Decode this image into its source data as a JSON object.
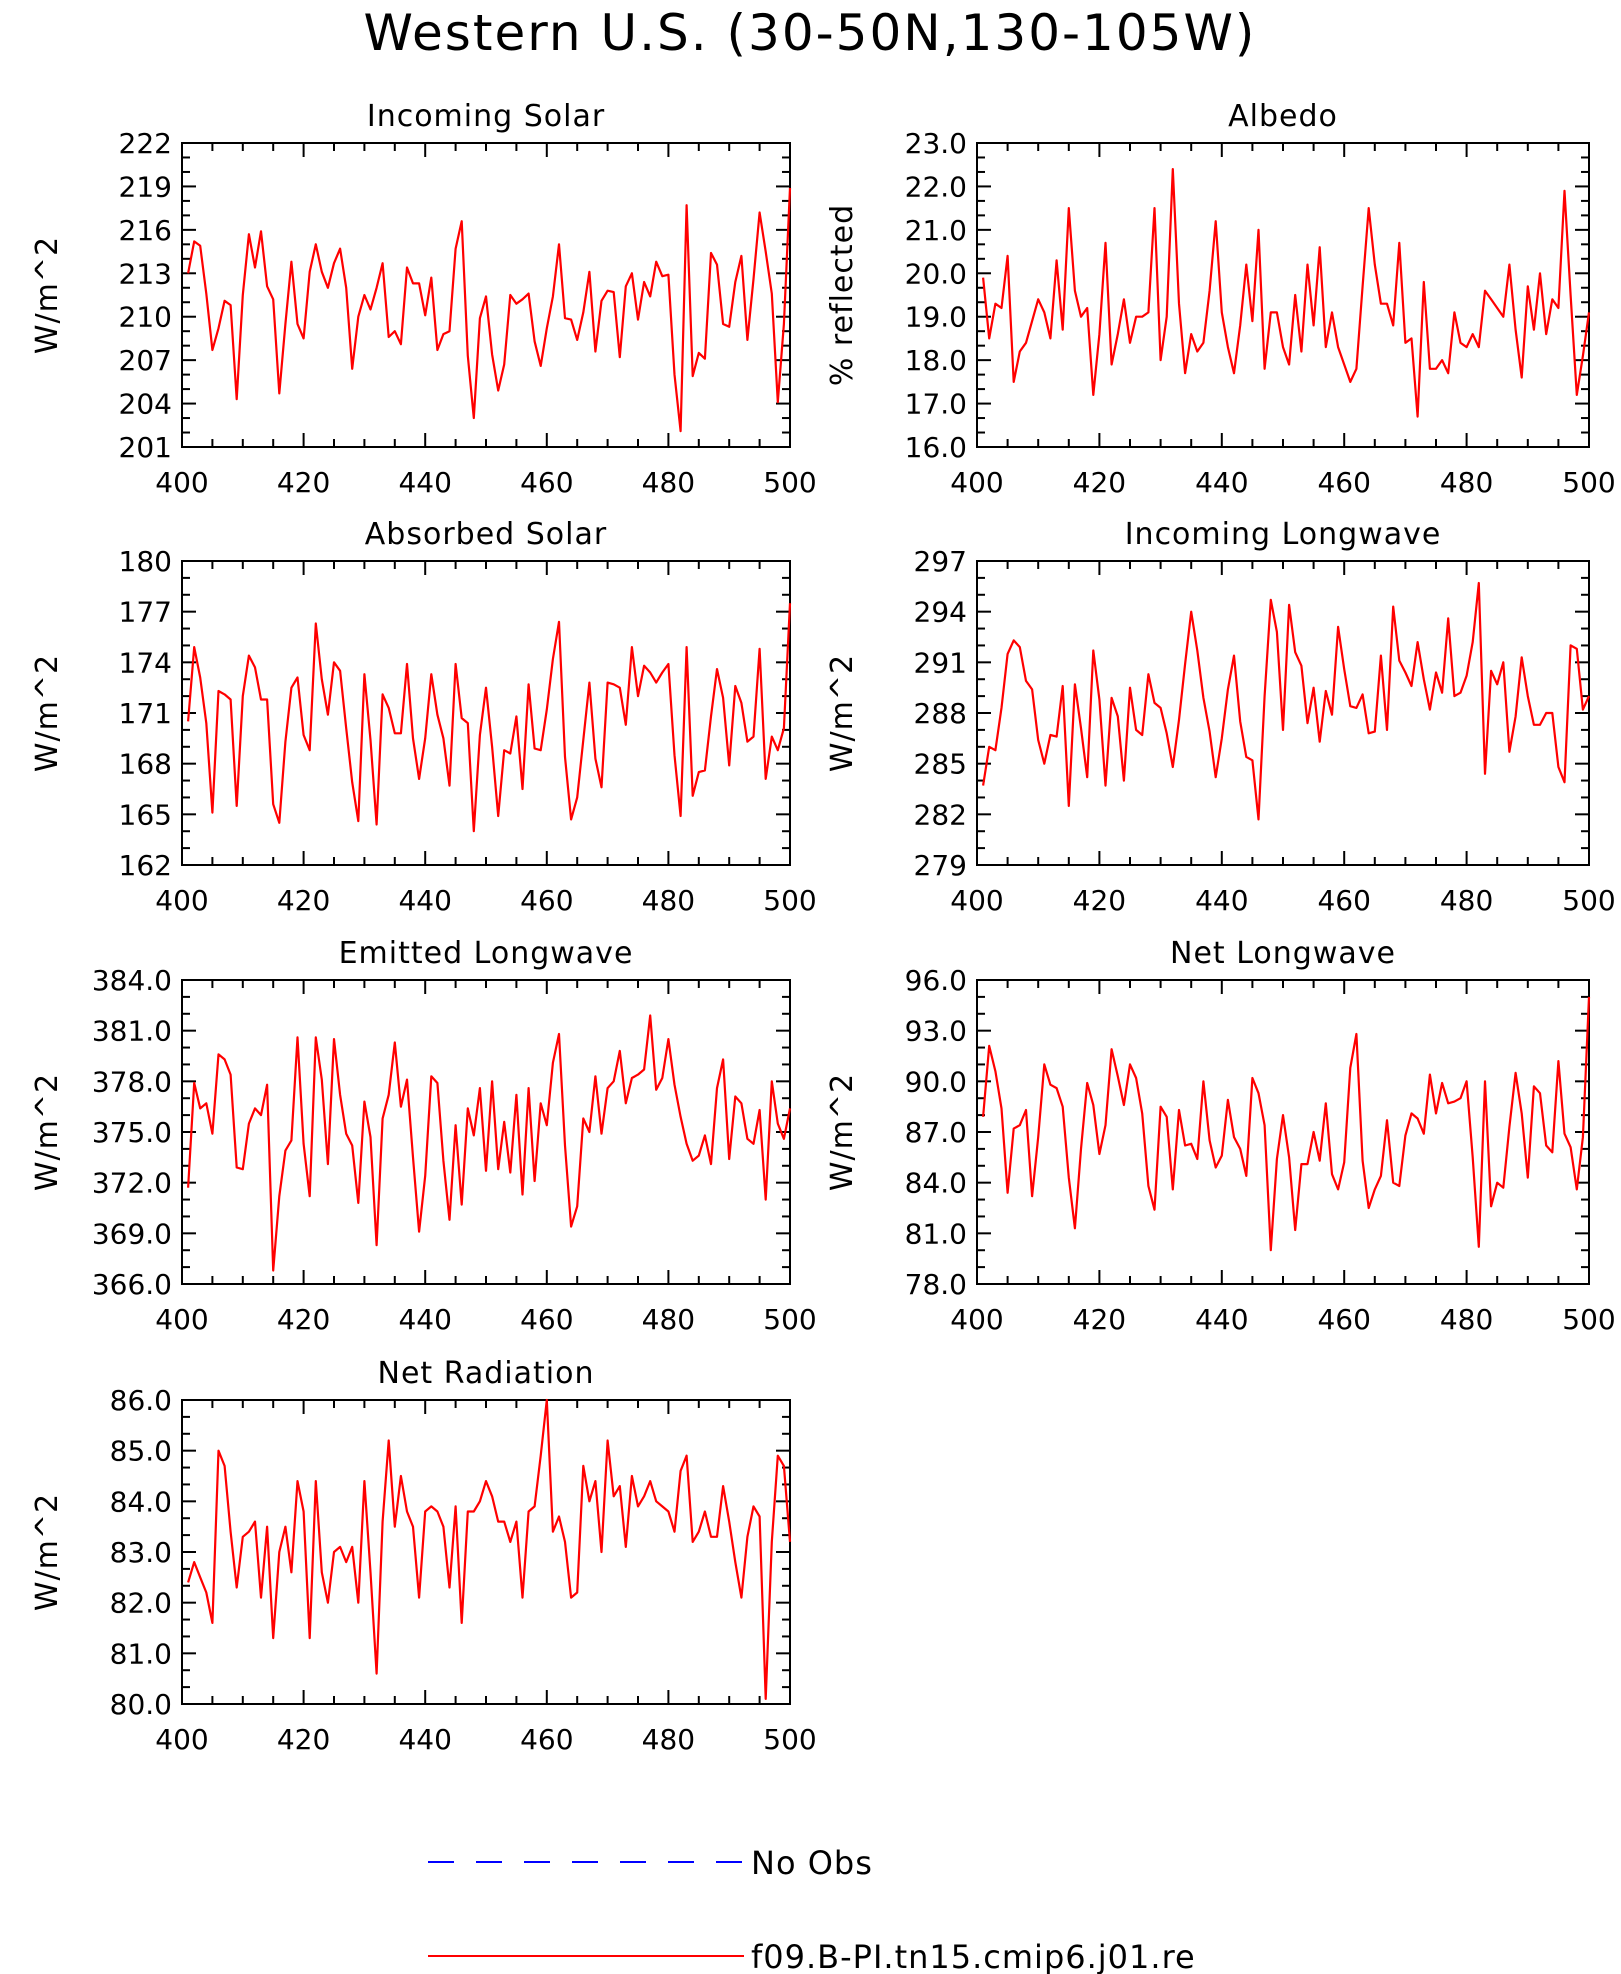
{
  "figure": {
    "title": "Western U.S. (30-50N,130-105W)"
  },
  "colors": {
    "model": "#ff0000",
    "obs": "#0000ff",
    "axes": "#000000"
  },
  "legend": {
    "placement": "bottom-center",
    "entries": [
      {
        "label": "No Obs",
        "style": "dashed",
        "color": "#0000ff"
      },
      {
        "label": "f09.B-PI.tn15.cmip6.j01.re",
        "style": "solid",
        "color": "#ff0000"
      }
    ]
  },
  "chart_data": [
    {
      "type": "line",
      "title": "Incoming Solar",
      "ylabel": "W/m^2",
      "xlabel": "",
      "xlim": [
        400,
        500
      ],
      "ylim": [
        201,
        222
      ],
      "decimals": 0,
      "xticks": [
        400,
        420,
        440,
        460,
        480,
        500
      ],
      "yticks": [
        201,
        204,
        207,
        210,
        213,
        216,
        219,
        222
      ],
      "x_start": 401,
      "x_step": 1,
      "series": [
        {
          "name": "f09.B-PI.tn15.cmip6.j01.re",
          "values": [
            213.0,
            215.2,
            214.9,
            211.6,
            207.7,
            209.2,
            211.1,
            210.8,
            204.3,
            211.5,
            215.7,
            213.4,
            215.9,
            212.1,
            211.2,
            204.7,
            209.5,
            213.8,
            209.5,
            208.5,
            213.1,
            215.0,
            213.1,
            212.0,
            213.7,
            214.7,
            212.0,
            206.4,
            210.0,
            211.5,
            210.5,
            212.0,
            213.7,
            208.6,
            209.0,
            208.1,
            213.4,
            212.3,
            212.3,
            210.1,
            212.7,
            207.7,
            208.8,
            209.0,
            214.7,
            216.6,
            207.3,
            203.0,
            209.9,
            211.4,
            207.4,
            204.9,
            206.7,
            211.5,
            210.9,
            211.2,
            211.6,
            208.3,
            206.6,
            209.2,
            211.4,
            215.0,
            209.9,
            209.8,
            208.4,
            210.3,
            213.1,
            207.6,
            211.1,
            211.8,
            211.7,
            207.2,
            212.1,
            213.0,
            209.8,
            212.4,
            211.4,
            213.8,
            212.8,
            212.9,
            206.0,
            202.1,
            217.7,
            205.9,
            207.5,
            207.1,
            214.4,
            213.6,
            209.5,
            209.3,
            212.4,
            214.2,
            208.4,
            212.6,
            217.2,
            214.5,
            211.6,
            204.1,
            209.5,
            218.9
          ]
        }
      ]
    },
    {
      "type": "line",
      "title": "Albedo",
      "ylabel": "% reflected",
      "xlabel": "",
      "xlim": [
        400,
        500
      ],
      "ylim": [
        16.0,
        23.0
      ],
      "decimals": 1,
      "xticks": [
        400,
        420,
        440,
        460,
        480,
        500
      ],
      "yticks": [
        16.0,
        17.0,
        18.0,
        19.0,
        20.0,
        21.0,
        22.0,
        23.0
      ],
      "x_start": 401,
      "x_step": 1,
      "series": [
        {
          "name": "f09.B-PI.tn15.cmip6.j01.re",
          "values": [
            19.9,
            18.5,
            19.3,
            19.2,
            20.4,
            17.5,
            18.2,
            18.4,
            18.9,
            19.4,
            19.1,
            18.5,
            20.3,
            18.7,
            21.5,
            19.6,
            19.0,
            19.2,
            17.2,
            18.6,
            20.7,
            17.9,
            18.6,
            19.4,
            18.4,
            19.0,
            19.0,
            19.1,
            21.5,
            18.0,
            19.0,
            22.4,
            19.3,
            17.7,
            18.6,
            18.2,
            18.4,
            19.6,
            21.2,
            19.1,
            18.3,
            17.7,
            18.8,
            20.2,
            18.9,
            21.0,
            17.8,
            19.1,
            19.1,
            18.3,
            17.9,
            19.5,
            18.2,
            20.2,
            18.8,
            20.6,
            18.3,
            19.1,
            18.3,
            17.9,
            17.5,
            17.8,
            19.7,
            21.5,
            20.2,
            19.3,
            19.3,
            18.8,
            20.7,
            18.4,
            18.5,
            16.7,
            19.8,
            17.8,
            17.8,
            18.0,
            17.7,
            19.1,
            18.4,
            18.3,
            18.6,
            18.3,
            19.6,
            19.4,
            19.2,
            19.0,
            20.2,
            18.7,
            17.6,
            19.7,
            18.7,
            20.0,
            18.6,
            19.4,
            19.2,
            21.9,
            19.5,
            17.2,
            18.1,
            19.1
          ]
        }
      ]
    },
    {
      "type": "line",
      "title": "Absorbed Solar",
      "ylabel": "W/m^2",
      "xlabel": "",
      "xlim": [
        400,
        500
      ],
      "ylim": [
        162,
        180
      ],
      "decimals": 0,
      "xticks": [
        400,
        420,
        440,
        460,
        480,
        500
      ],
      "yticks": [
        162,
        165,
        168,
        171,
        174,
        177,
        180
      ],
      "x_start": 401,
      "x_step": 1,
      "series": [
        {
          "name": "f09.B-PI.tn15.cmip6.j01.re",
          "values": [
            170.5,
            174.9,
            173.1,
            170.4,
            165.1,
            172.3,
            172.1,
            171.8,
            165.5,
            172.0,
            174.4,
            173.7,
            171.8,
            171.8,
            165.6,
            164.5,
            169.3,
            172.5,
            173.1,
            169.7,
            168.8,
            176.3,
            173.0,
            170.9,
            174.0,
            173.5,
            170.1,
            166.9,
            164.6,
            173.3,
            169.4,
            164.4,
            172.1,
            171.3,
            169.8,
            169.8,
            173.9,
            169.5,
            167.1,
            169.5,
            173.3,
            170.9,
            169.5,
            166.7,
            173.9,
            170.7,
            170.4,
            164.0,
            169.7,
            172.5,
            169.0,
            164.9,
            168.8,
            168.6,
            170.8,
            166.5,
            172.7,
            168.9,
            168.8,
            171.2,
            174.2,
            176.4,
            168.4,
            164.7,
            166.0,
            169.4,
            172.8,
            168.3,
            166.6,
            172.8,
            172.7,
            172.5,
            170.3,
            174.9,
            172.0,
            173.8,
            173.4,
            172.8,
            173.4,
            173.9,
            168.5,
            164.9,
            174.9,
            166.1,
            167.5,
            167.6,
            170.8,
            173.6,
            171.9,
            167.9,
            172.6,
            171.6,
            169.3,
            169.6,
            174.8,
            167.1,
            169.6,
            168.8,
            170.1,
            177.5
          ]
        }
      ]
    },
    {
      "type": "line",
      "title": "Incoming Longwave",
      "ylabel": "W/m^2",
      "xlabel": "",
      "xlim": [
        400,
        500
      ],
      "ylim": [
        279,
        297
      ],
      "decimals": 0,
      "xticks": [
        400,
        420,
        440,
        460,
        480,
        500
      ],
      "yticks": [
        279,
        282,
        285,
        288,
        291,
        294,
        297
      ],
      "x_start": 401,
      "x_step": 1,
      "series": [
        {
          "name": "f09.B-PI.tn15.cmip6.j01.re",
          "values": [
            283.7,
            286.0,
            285.8,
            288.3,
            291.5,
            292.3,
            291.9,
            289.9,
            289.4,
            286.4,
            285.0,
            286.7,
            286.6,
            289.6,
            282.5,
            289.7,
            287.1,
            284.2,
            291.7,
            288.8,
            283.7,
            288.9,
            287.8,
            284.0,
            289.5,
            287.0,
            286.7,
            290.3,
            288.6,
            288.3,
            286.8,
            284.8,
            287.6,
            290.9,
            294.0,
            291.7,
            288.9,
            286.9,
            284.2,
            286.5,
            289.4,
            291.4,
            287.5,
            285.4,
            285.2,
            281.7,
            289.0,
            294.7,
            292.8,
            287.0,
            294.4,
            291.6,
            290.8,
            287.4,
            289.5,
            286.3,
            289.3,
            287.9,
            293.1,
            290.6,
            288.4,
            288.3,
            289.1,
            286.8,
            286.9,
            291.4,
            287.0,
            294.3,
            291.1,
            290.4,
            289.6,
            292.2,
            290.0,
            288.2,
            290.4,
            289.2,
            293.6,
            289.0,
            289.2,
            290.2,
            292.2,
            295.7,
            284.4,
            290.5,
            289.7,
            291.0,
            285.7,
            287.8,
            291.3,
            289.0,
            287.3,
            287.3,
            288.0,
            288.0,
            284.8,
            283.9,
            292.0,
            291.8,
            288.2,
            289.0
          ]
        }
      ]
    },
    {
      "type": "line",
      "title": "Emitted Longwave",
      "ylabel": "W/m^2",
      "xlabel": "",
      "xlim": [
        400,
        500
      ],
      "ylim": [
        366.0,
        384.0
      ],
      "decimals": 1,
      "xticks": [
        400,
        420,
        440,
        460,
        480,
        500
      ],
      "yticks": [
        366.0,
        369.0,
        372.0,
        375.0,
        378.0,
        381.0,
        384.0
      ],
      "x_start": 401,
      "x_step": 1,
      "series": [
        {
          "name": "f09.B-PI.tn15.cmip6.j01.re",
          "values": [
            371.7,
            377.9,
            376.4,
            376.7,
            374.9,
            379.6,
            379.3,
            378.4,
            372.9,
            372.8,
            375.5,
            376.4,
            376.0,
            377.8,
            366.8,
            371.2,
            373.9,
            374.5,
            380.6,
            374.3,
            371.2,
            380.6,
            378.1,
            373.1,
            380.5,
            377.2,
            374.9,
            374.2,
            370.8,
            376.8,
            374.7,
            368.3,
            375.8,
            377.2,
            380.3,
            376.5,
            378.1,
            373.5,
            369.1,
            372.4,
            378.3,
            377.9,
            373.3,
            369.8,
            375.4,
            370.7,
            376.4,
            374.8,
            377.6,
            372.7,
            378.0,
            372.8,
            375.6,
            372.6,
            377.2,
            371.3,
            377.6,
            372.1,
            376.7,
            375.4,
            379.1,
            380.8,
            374.2,
            369.4,
            370.6,
            375.8,
            375.0,
            378.3,
            374.9,
            377.6,
            378.0,
            379.8,
            376.7,
            378.2,
            378.4,
            378.7,
            381.9,
            377.5,
            378.2,
            380.5,
            377.8,
            375.9,
            374.3,
            373.3,
            373.6,
            374.8,
            373.1,
            377.6,
            379.3,
            373.4,
            377.1,
            376.7,
            374.6,
            374.3,
            376.3,
            371.0,
            378.0,
            375.5,
            374.6,
            376.4
          ]
        }
      ]
    },
    {
      "type": "line",
      "title": "Net Longwave",
      "ylabel": "W/m^2",
      "xlabel": "",
      "xlim": [
        400,
        500
      ],
      "ylim": [
        78.0,
        96.0
      ],
      "decimals": 1,
      "xticks": [
        400,
        420,
        440,
        460,
        480,
        500
      ],
      "yticks": [
        78.0,
        81.0,
        84.0,
        87.0,
        90.0,
        93.0,
        96.0
      ],
      "x_start": 401,
      "x_step": 1,
      "series": [
        {
          "name": "f09.B-PI.tn15.cmip6.j01.re",
          "values": [
            87.9,
            92.1,
            90.6,
            88.4,
            83.4,
            87.2,
            87.4,
            88.3,
            83.2,
            86.7,
            91.0,
            89.8,
            89.6,
            88.5,
            84.3,
            81.3,
            86.0,
            89.9,
            88.6,
            85.7,
            87.4,
            91.9,
            90.3,
            88.6,
            91.0,
            90.2,
            88.1,
            83.8,
            82.4,
            88.5,
            87.9,
            83.6,
            88.3,
            86.2,
            86.3,
            85.4,
            90.0,
            86.5,
            84.9,
            85.6,
            88.9,
            86.7,
            86.0,
            84.4,
            90.2,
            89.3,
            87.4,
            80.0,
            85.4,
            88.0,
            85.5,
            81.2,
            85.1,
            85.1,
            87.0,
            85.3,
            88.7,
            84.5,
            83.6,
            85.2,
            90.8,
            92.8,
            85.3,
            82.5,
            83.6,
            84.4,
            87.7,
            84.0,
            83.8,
            86.8,
            88.1,
            87.8,
            86.9,
            90.4,
            88.1,
            89.9,
            88.7,
            88.8,
            89.0,
            90.0,
            85.5,
            80.2,
            90.0,
            82.6,
            84.0,
            83.7,
            87.3,
            90.5,
            88.1,
            84.3,
            89.7,
            89.3,
            86.2,
            85.8,
            91.2,
            86.9,
            86.1,
            83.6,
            86.7,
            95.0
          ]
        }
      ]
    },
    {
      "type": "line",
      "title": "Net Radiation",
      "ylabel": "W/m^2",
      "xlabel": "",
      "xlim": [
        400,
        500
      ],
      "ylim": [
        80.0,
        86.0
      ],
      "decimals": 1,
      "xticks": [
        400,
        420,
        440,
        460,
        480,
        500
      ],
      "yticks": [
        80.0,
        81.0,
        82.0,
        83.0,
        84.0,
        85.0,
        86.0
      ],
      "x_start": 401,
      "x_step": 1,
      "series": [
        {
          "name": "f09.B-PI.tn15.cmip6.j01.re",
          "values": [
            82.4,
            82.8,
            82.5,
            82.2,
            81.6,
            85.0,
            84.7,
            83.4,
            82.3,
            83.3,
            83.4,
            83.6,
            82.1,
            83.5,
            81.3,
            83.0,
            83.5,
            82.6,
            84.4,
            83.8,
            81.3,
            84.4,
            82.6,
            82.0,
            83.0,
            83.1,
            82.8,
            83.1,
            82.0,
            84.4,
            82.6,
            80.6,
            83.6,
            85.2,
            83.5,
            84.5,
            83.8,
            83.5,
            82.1,
            83.8,
            83.9,
            83.8,
            83.5,
            82.3,
            83.9,
            81.6,
            83.8,
            83.8,
            84.0,
            84.4,
            84.1,
            83.6,
            83.6,
            83.2,
            83.6,
            82.1,
            83.8,
            83.9,
            84.9,
            86.0,
            83.4,
            83.7,
            83.2,
            82.1,
            82.2,
            84.7,
            84.0,
            84.4,
            83.0,
            85.2,
            84.1,
            84.3,
            83.1,
            84.5,
            83.9,
            84.1,
            84.4,
            84.0,
            83.9,
            83.8,
            83.4,
            84.6,
            84.9,
            83.2,
            83.4,
            83.8,
            83.3,
            83.3,
            84.3,
            83.6,
            82.8,
            82.1,
            83.3,
            83.9,
            83.7,
            80.1,
            83.2,
            84.9,
            84.7,
            83.2
          ]
        }
      ]
    }
  ]
}
